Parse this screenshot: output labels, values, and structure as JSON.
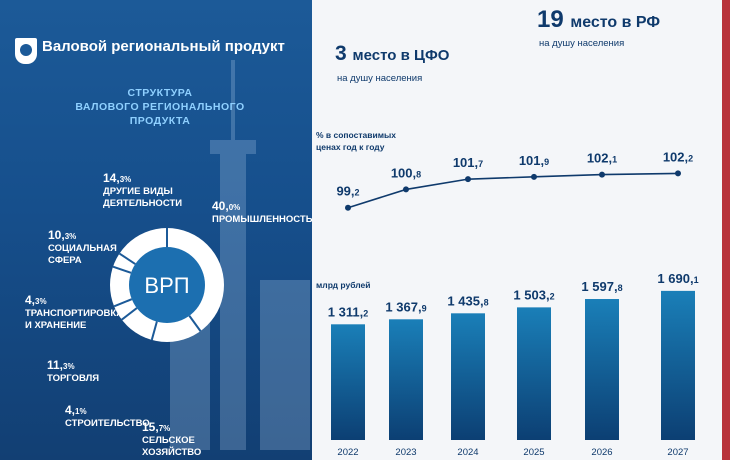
{
  "header": {
    "title": "Валовой региональный продукт"
  },
  "structure": {
    "heading_line1": "СТРУКТУРА",
    "heading_line2": "ВАЛОВОГО РЕГИОНАЛЬНОГО ПРОДУКТА",
    "center_label": "ВРП",
    "segments": [
      {
        "pct_main": "40,",
        "pct_dec": "0%",
        "label": "ПРОМЫШЛЕННОСТЬ",
        "value": 40.0
      },
      {
        "pct_main": "14,",
        "pct_dec": "3%",
        "label": "ДРУГИЕ ВИДЫ ДЕЯТЕЛЬНОСТИ",
        "value": 14.3
      },
      {
        "pct_main": "10,",
        "pct_dec": "3%",
        "label": "СОЦИАЛЬНАЯ СФЕРА",
        "value": 10.3
      },
      {
        "pct_main": "4,",
        "pct_dec": "3%",
        "label": "ТРАНСПОРТИРОВКА И ХРАНЕНИЕ",
        "value": 4.3
      },
      {
        "pct_main": "11,",
        "pct_dec": "3%",
        "label": "ТОРГОВЛЯ",
        "value": 11.3
      },
      {
        "pct_main": "4,",
        "pct_dec": "1%",
        "label": "СТРОИТЕЛЬСТВО",
        "value": 4.1
      },
      {
        "pct_main": "15,",
        "pct_dec": "7%",
        "label": "СЕЛЬСКОЕ ХОЗЯЙСТВО",
        "value": 15.7
      }
    ]
  },
  "rank": {
    "cfo_value": "3",
    "cfo_text": "место в ЦФО",
    "cfo_sub": "на душу населения",
    "rf_value": "19",
    "rf_text": "место в РФ",
    "rf_sub": "на душу населения"
  },
  "index_chart": {
    "label_line1": "% в сопоставимых",
    "label_line2": "ценах год к году"
  },
  "bars": {
    "unit": "млрд рублей"
  },
  "chart_data": [
    {
      "type": "pie",
      "categories": [
        "Промышленность",
        "Другие виды деятельности",
        "Социальная сфера",
        "Транспортировка и хранение",
        "Торговля",
        "Строительство",
        "Сельское хозяйство"
      ],
      "values": [
        40.0,
        14.3,
        10.3,
        4.3,
        11.3,
        4.1,
        15.7
      ],
      "title": "Структура валового регионального продукта"
    },
    {
      "type": "line",
      "x": [
        "2022",
        "2023",
        "2024",
        "2025",
        "2026",
        "2027"
      ],
      "values": [
        99.2,
        100.8,
        101.7,
        101.9,
        102.1,
        102.2
      ],
      "labels_main": [
        "99,",
        "100,",
        "101,",
        "101,",
        "102,",
        "102,"
      ],
      "labels_dec": [
        "2",
        "8",
        "7",
        "9",
        "1",
        "2"
      ],
      "ylabel": "% в сопоставимых ценах год к году"
    },
    {
      "type": "bar",
      "categories": [
        "2022",
        "2023",
        "2024",
        "2025",
        "2026",
        "2027"
      ],
      "values": [
        1311.2,
        1367.9,
        1435.8,
        1503.2,
        1597.8,
        1690.1
      ],
      "labels_main": [
        "1 311,",
        "1 367,",
        "1 435,",
        "1 503,",
        "1 597,",
        "1 690,"
      ],
      "labels_dec": [
        "2",
        "9",
        "8",
        "2",
        "8",
        "1"
      ],
      "ylabel": "млрд рублей"
    }
  ],
  "colors": {
    "left_bg": "#1c5a98",
    "right_bg": "#f4f6f9",
    "bar_top": "#1a7fb8",
    "bar_bottom": "#0c3f73",
    "text_dark": "#0f3a6c"
  }
}
